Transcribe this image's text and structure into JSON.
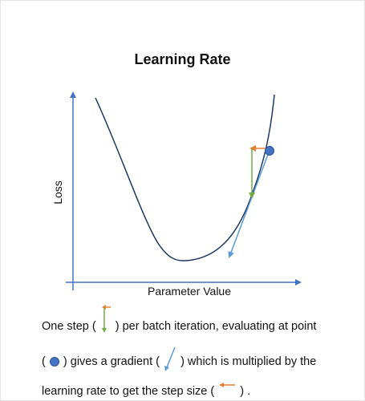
{
  "title": "Learning Rate",
  "axes": {
    "xlabel": "Parameter Value",
    "ylabel": "Loss"
  },
  "colors": {
    "axis": "#4472c4",
    "curve": "#1f3864",
    "point_fill": "#4472c4",
    "point_stroke": "#2f5597",
    "gradient": "#5b9bd5",
    "step_down": "#70ad47",
    "step_left": "#ed7d31"
  },
  "caption": {
    "line1_before": "One step (",
    "line1_after": ") per batch iteration, evaluating at point",
    "line2_open": "(",
    "line2_mid": ") gives a gradient (",
    "line2_after": ") which is multiplied by the",
    "line3_before": "learning rate to get the step size (",
    "line3_after": ") ."
  },
  "icons": {
    "step": "step-arrows-icon",
    "point": "point-marker-icon",
    "gradient": "gradient-arrow-icon",
    "step_size": "step-size-arrow-icon"
  }
}
